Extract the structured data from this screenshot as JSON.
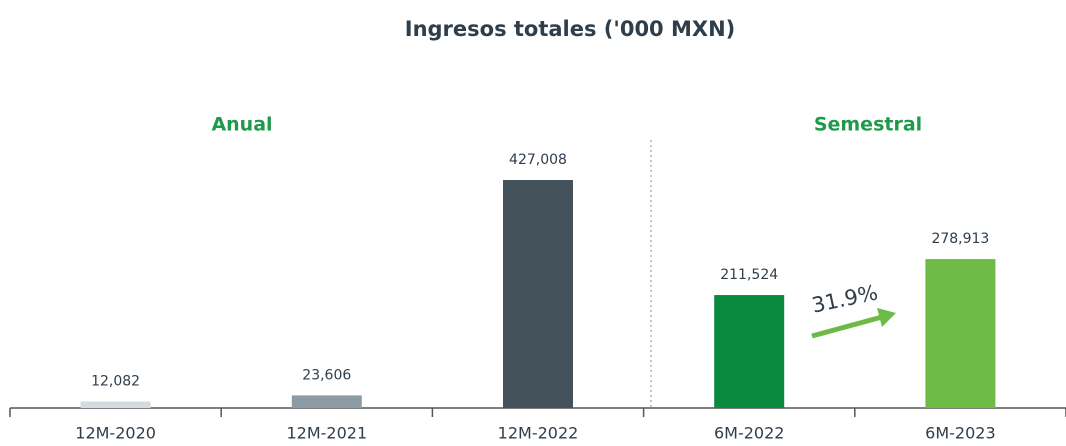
{
  "chart_data": {
    "type": "bar",
    "title": "Ingresos totales ('000 MXN)",
    "groups": [
      "Anual",
      "Semestral"
    ],
    "categories": [
      "12M-2020",
      "12M-2021",
      "12M-2022",
      "6M-2022",
      "6M-2023"
    ],
    "values": [
      12082,
      23606,
      427008,
      211524,
      278913
    ],
    "value_labels": [
      "12,082",
      "23,606",
      "427,008",
      "211,524",
      "278,913"
    ],
    "colors": [
      "#d3dbdf",
      "#8d9ba4",
      "#44525c",
      "#0a8a3e",
      "#6dbb45"
    ],
    "annotations": [
      "31.9%"
    ]
  }
}
